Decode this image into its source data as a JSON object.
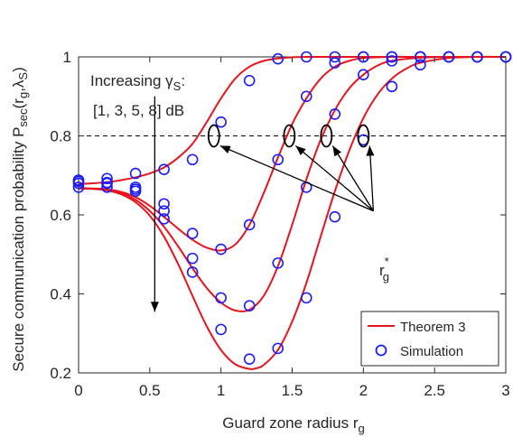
{
  "chart_data": {
    "type": "line",
    "xlabel": "Guard zone radius r",
    "xlabel_sub": "g",
    "ylabel_parts": [
      "Secure communication probability P",
      "sec",
      "(r",
      "g",
      ",λ",
      "S",
      ")"
    ],
    "xlim": [
      0,
      3
    ],
    "ylim": [
      0.2,
      1
    ],
    "xticks": [
      0,
      0.5,
      1,
      1.5,
      2,
      2.5,
      3
    ],
    "yticks": [
      0.2,
      0.4,
      0.6,
      0.8,
      1
    ],
    "xtick_labels": [
      "0",
      "0.5",
      "1",
      "1.5",
      "2",
      "2.5",
      "3"
    ],
    "ytick_labels": [
      "0.2",
      "0.4",
      "0.6",
      "0.8",
      "1"
    ],
    "grid": false,
    "reference_line": {
      "y": 0.8,
      "style": "dashed"
    },
    "colors": {
      "theory": "#e8141c",
      "simulation": "#1a1aff",
      "axis": "#262626"
    },
    "legend": {
      "position": "bottom-right",
      "entries": [
        {
          "label": "Theorem 3",
          "marker": "line"
        },
        {
          "label": "Simulation",
          "marker": "circle"
        }
      ]
    },
    "series": [
      {
        "theory": {
          "x": [
            0,
            0.1,
            0.2,
            0.3,
            0.4,
            0.5,
            0.6,
            0.7,
            0.8,
            0.9,
            1.0,
            1.1,
            1.2,
            1.3,
            1.4,
            1.5,
            1.6,
            1.7,
            1.8,
            1.9,
            2.0,
            2.2,
            2.4,
            2.6,
            2.8,
            3.0
          ],
          "y": [
            0.678,
            0.68,
            0.683,
            0.688,
            0.695,
            0.705,
            0.72,
            0.745,
            0.78,
            0.835,
            0.895,
            0.945,
            0.975,
            0.99,
            0.996,
            0.999,
            1.0,
            1.0,
            1.0,
            1.0,
            1.0,
            1.0,
            1.0,
            1.0,
            1.0,
            1.0
          ]
        },
        "simulation": {
          "x": [
            0,
            0.2,
            0.4,
            0.6,
            0.8,
            1.0,
            1.2,
            1.4,
            1.6,
            1.8,
            2.0,
            2.2,
            2.4,
            2.6,
            2.8,
            3.0
          ],
          "y": [
            0.688,
            0.692,
            0.705,
            0.715,
            0.74,
            0.835,
            0.94,
            0.995,
            1.0,
            1.0,
            1.0,
            1.0,
            1.0,
            1.0,
            1.0,
            1.0
          ]
        }
      },
      {
        "theory": {
          "x": [
            0,
            0.1,
            0.2,
            0.3,
            0.4,
            0.5,
            0.6,
            0.7,
            0.8,
            0.9,
            1.0,
            1.1,
            1.2,
            1.3,
            1.4,
            1.5,
            1.6,
            1.7,
            1.8,
            1.9,
            2.0,
            2.2,
            2.4,
            2.6,
            2.8,
            3.0
          ],
          "y": [
            0.668,
            0.667,
            0.665,
            0.658,
            0.645,
            0.623,
            0.595,
            0.565,
            0.537,
            0.517,
            0.51,
            0.525,
            0.575,
            0.655,
            0.745,
            0.83,
            0.895,
            0.945,
            0.975,
            0.99,
            0.997,
            1.0,
            1.0,
            1.0,
            1.0,
            1.0
          ]
        },
        "simulation": {
          "x": [
            0,
            0.2,
            0.4,
            0.6,
            0.8,
            1.0,
            1.2,
            1.4,
            1.6,
            1.8,
            2.0,
            2.2,
            2.4,
            2.6,
            2.8,
            3.0
          ],
          "y": [
            0.685,
            0.682,
            0.67,
            0.628,
            0.553,
            0.513,
            0.575,
            0.74,
            0.9,
            0.985,
            1.0,
            1.0,
            1.0,
            1.0,
            1.0,
            1.0
          ]
        }
      },
      {
        "theory": {
          "x": [
            0,
            0.1,
            0.2,
            0.3,
            0.4,
            0.5,
            0.6,
            0.7,
            0.8,
            0.9,
            1.0,
            1.1,
            1.2,
            1.3,
            1.4,
            1.5,
            1.6,
            1.7,
            1.8,
            1.9,
            2.0,
            2.1,
            2.2,
            2.4,
            2.6,
            2.8,
            3.0
          ],
          "y": [
            0.667,
            0.666,
            0.663,
            0.655,
            0.638,
            0.61,
            0.57,
            0.52,
            0.465,
            0.415,
            0.378,
            0.358,
            0.36,
            0.395,
            0.47,
            0.575,
            0.69,
            0.79,
            0.865,
            0.92,
            0.955,
            0.978,
            0.99,
            0.998,
            1.0,
            1.0,
            1.0
          ]
        },
        "simulation": {
          "x": [
            0,
            0.2,
            0.4,
            0.6,
            0.8,
            1.0,
            1.2,
            1.4,
            1.6,
            1.8,
            2.0,
            2.2,
            2.4,
            2.6,
            2.8,
            3.0
          ],
          "y": [
            0.68,
            0.68,
            0.665,
            0.61,
            0.49,
            0.39,
            0.37,
            0.478,
            0.67,
            0.855,
            0.955,
            0.99,
            1.0,
            1.0,
            1.0,
            1.0
          ]
        }
      },
      {
        "theory": {
          "x": [
            0,
            0.1,
            0.2,
            0.3,
            0.4,
            0.5,
            0.6,
            0.7,
            0.8,
            0.9,
            1.0,
            1.1,
            1.2,
            1.25,
            1.3,
            1.4,
            1.5,
            1.6,
            1.7,
            1.8,
            1.9,
            2.0,
            2.1,
            2.2,
            2.3,
            2.4,
            2.6,
            2.8,
            3.0
          ],
          "y": [
            0.667,
            0.666,
            0.662,
            0.652,
            0.632,
            0.598,
            0.545,
            0.475,
            0.395,
            0.318,
            0.258,
            0.222,
            0.21,
            0.212,
            0.22,
            0.258,
            0.33,
            0.428,
            0.545,
            0.66,
            0.762,
            0.845,
            0.905,
            0.945,
            0.97,
            0.985,
            0.997,
            1.0,
            1.0
          ]
        },
        "simulation": {
          "x": [
            0,
            0.2,
            0.4,
            0.6,
            0.8,
            1.0,
            1.2,
            1.4,
            1.6,
            1.8,
            2.0,
            2.2,
            2.4,
            2.6,
            2.8,
            3.0
          ],
          "y": [
            0.67,
            0.67,
            0.66,
            0.59,
            0.455,
            0.31,
            0.235,
            0.262,
            0.39,
            0.595,
            0.79,
            0.925,
            0.98,
            1.0,
            1.0,
            1.0
          ]
        }
      }
    ],
    "annotations": {
      "increasing_line1": "Increasing γ",
      "increasing_line1_sub": "S",
      "increasing_line1_tail": ":",
      "increasing_line2": "[1, 3, 5, 8] dB",
      "rg_star": "r",
      "rg_star_sup": "*",
      "rg_star_sub": "g",
      "ellipse_points_x": [
        0.95,
        1.48,
        1.74,
        2.0
      ],
      "ellipse_points_y": 0.8,
      "arrow_down_x": 0.535,
      "arrow_down_from_y": 0.9,
      "arrow_down_to_y": 0.355,
      "arrows_origin": {
        "x": 2.07,
        "y": 0.61
      }
    }
  }
}
